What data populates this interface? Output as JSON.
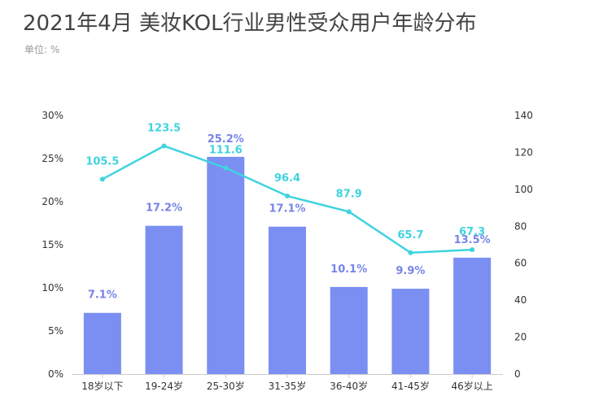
{
  "header": {
    "title": "2021年4月 美妆KOL行业男性受众用户年龄分布",
    "subtitle": "单位: %"
  },
  "chart_data": {
    "type": "bar",
    "title": "2021年4月 美妆KOL行业男性受众用户年龄分布",
    "unit": "单位: %",
    "categories": [
      "18岁以下",
      "19-24岁",
      "25-30岁",
      "31-35岁",
      "36-40岁",
      "41-45岁",
      "46岁以上"
    ],
    "series": [
      {
        "type": "bar",
        "axis": "left",
        "values": [
          7.1,
          17.2,
          25.2,
          17.1,
          10.1,
          9.9,
          13.5
        ],
        "labels": [
          "7.1%",
          "17.2%",
          "25.2%",
          "17.1%",
          "10.1%",
          "9.9%",
          "13.5%"
        ],
        "color": "#7b8ff2"
      },
      {
        "type": "line",
        "axis": "right",
        "values": [
          105.5,
          123.5,
          111.6,
          96.4,
          87.9,
          65.7,
          67.3
        ],
        "labels": [
          "105.5",
          "123.5",
          "111.6",
          "96.4",
          "87.9",
          "65.7",
          "67.3"
        ],
        "color": "#3fd3e0"
      }
    ],
    "y_left": {
      "range": [
        0,
        30
      ],
      "ticks": [
        0,
        5,
        10,
        15,
        20,
        25,
        30
      ],
      "tick_labels": [
        "0%",
        "5%",
        "10%",
        "15%",
        "20%",
        "25%",
        "30%"
      ]
    },
    "y_right": {
      "range": [
        0,
        140
      ],
      "ticks": [
        0,
        20,
        40,
        60,
        80,
        100,
        120,
        140
      ],
      "tick_labels": [
        "0",
        "20",
        "40",
        "60",
        "80",
        "100",
        "120",
        "140"
      ]
    },
    "grid": false,
    "legend": "none",
    "colors": {
      "bar": "#7b8ff2",
      "line": "#3fd3e0",
      "bar_label": "#7784e8",
      "axis": "#cccccc"
    }
  }
}
